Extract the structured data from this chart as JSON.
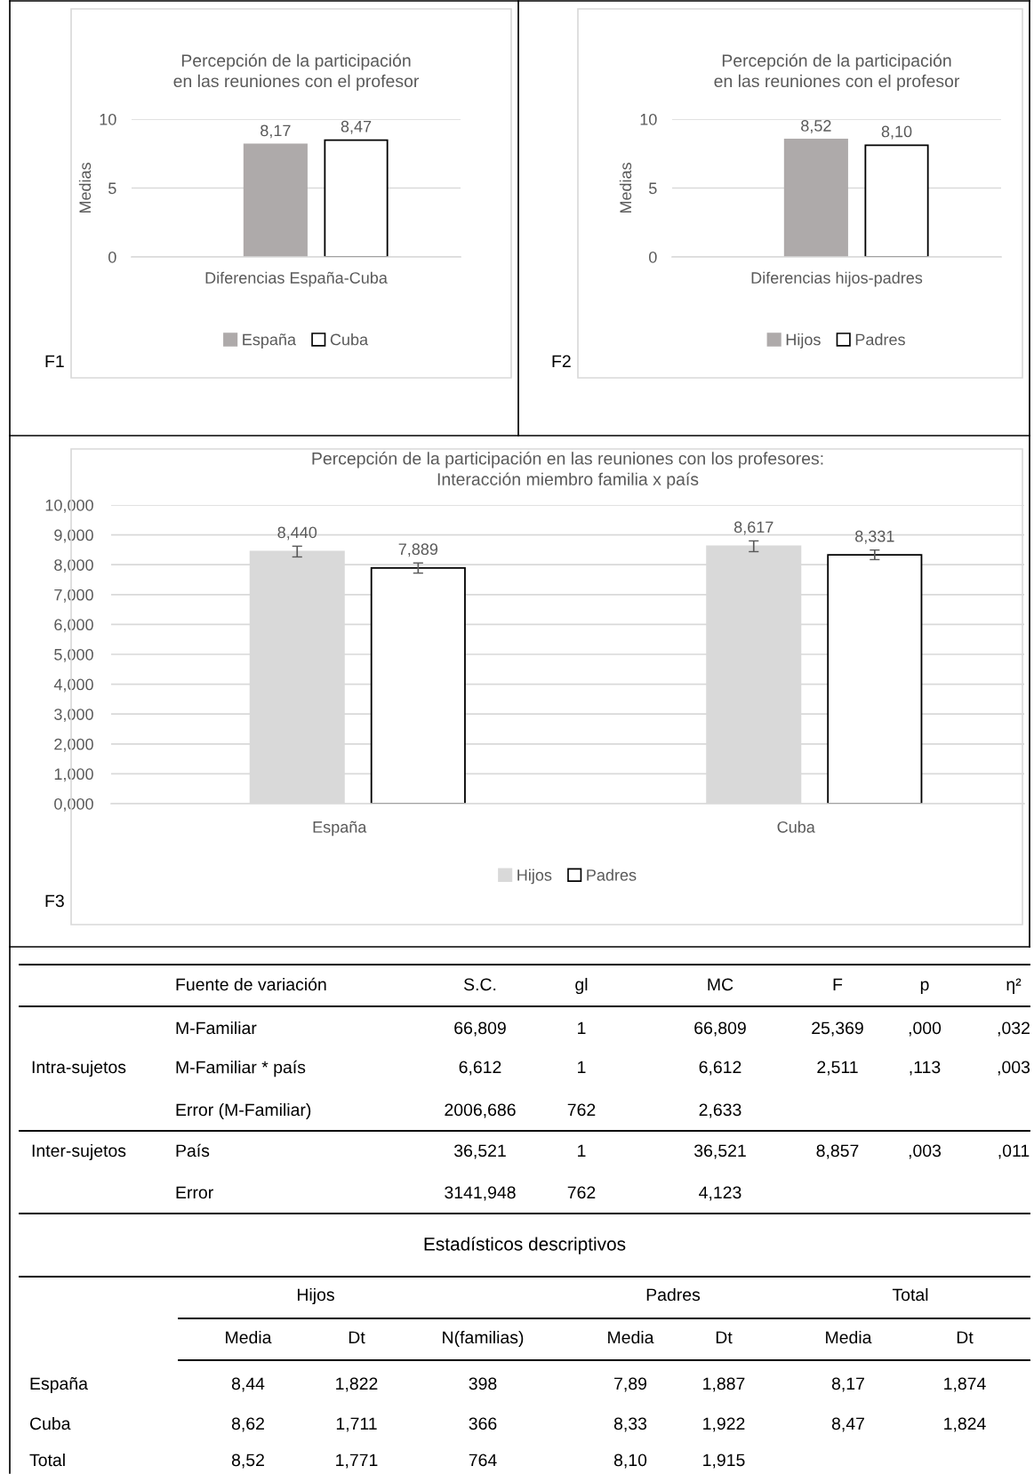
{
  "chart_data": [
    {
      "type": "bar",
      "title": "Percepción de la participación\nen las reuniones con el profesor",
      "ylabel": "Medias",
      "categories": [
        "Diferencias España-Cuba"
      ],
      "series": [
        {
          "name": "España",
          "color": "#aeaaaa",
          "values": [
            8.17
          ],
          "value_labels": [
            "8,17"
          ]
        },
        {
          "name": "Cuba",
          "color": "#ffffff",
          "values": [
            8.47
          ],
          "value_labels": [
            "8,47"
          ]
        }
      ],
      "ylim": [
        0,
        10
      ],
      "yticks": [
        0,
        5,
        10
      ],
      "grid": "y",
      "legend": "bottom",
      "annotations": [
        "F1"
      ]
    },
    {
      "type": "bar",
      "title": "Percepción de la participación\nen las reuniones con el profesor",
      "ylabel": "Medias",
      "categories": [
        "Diferencias hijos-padres"
      ],
      "series": [
        {
          "name": "Hijos",
          "color": "#aeaaaa",
          "values": [
            8.52
          ],
          "value_labels": [
            "8,52"
          ]
        },
        {
          "name": "Padres",
          "color": "#ffffff",
          "values": [
            8.1
          ],
          "value_labels": [
            "8,10"
          ]
        }
      ],
      "ylim": [
        0,
        10
      ],
      "yticks": [
        0,
        5,
        10
      ],
      "grid": "y",
      "legend": "bottom",
      "annotations": [
        "F2"
      ]
    },
    {
      "type": "bar",
      "title": "Percepción de la participación en las reuniones con los profesores:\nInteracción miembro familia x país",
      "categories": [
        "España",
        "Cuba"
      ],
      "series": [
        {
          "name": "Hijos",
          "color": "#d9d9d9",
          "values": [
            8.44,
            8.617
          ],
          "errors": [
            0.18,
            0.18
          ],
          "value_labels": [
            "8,440",
            "8,617"
          ]
        },
        {
          "name": "Padres",
          "color": "#ffffff",
          "values": [
            7.889,
            8.331
          ],
          "errors": [
            0.17,
            0.16
          ],
          "value_labels": [
            "7,889",
            "8,331"
          ]
        }
      ],
      "ylim": [
        0,
        10
      ],
      "yticks": [
        {
          "value": 0,
          "label": "0,000"
        },
        {
          "value": 1,
          "label": "1,000"
        },
        {
          "value": 2,
          "label": "2,000"
        },
        {
          "value": 3,
          "label": "3,000"
        },
        {
          "value": 4,
          "label": "4,000"
        },
        {
          "value": 5,
          "label": "5,000"
        },
        {
          "value": 6,
          "label": "6,000"
        },
        {
          "value": 7,
          "label": "7,000"
        },
        {
          "value": 8,
          "label": "8,000"
        },
        {
          "value": 9,
          "label": "9,000"
        },
        {
          "value": 10,
          "label": "10,000"
        }
      ],
      "grid": "y",
      "legend": "bottom",
      "annotations": [
        "F3"
      ]
    },
    {
      "type": "other",
      "cell_labels": [
        [
          null,
          "Fuente de variación",
          "S.C.",
          "gl",
          "MC",
          "F",
          "p",
          "η²"
        ],
        [
          null,
          "M-Familiar",
          "66,809",
          "1",
          "66,809",
          "25,369",
          ",000",
          ",032"
        ],
        [
          "Intra-sujetos",
          "M-Familiar * país",
          "6,612",
          "1",
          "6,612",
          "2,511",
          ",113",
          ",003"
        ],
        [
          null,
          "Error (M-Familiar)",
          "2006,686",
          "762",
          "2,633",
          null,
          null,
          null
        ],
        [
          "Inter-sujetos",
          "País",
          "36,521",
          "1",
          "36,521",
          "8,857",
          ",003",
          ",011"
        ],
        [
          null,
          "Error",
          "3141,948",
          "762",
          "4,123",
          null,
          null,
          null
        ]
      ]
    },
    {
      "type": "other",
      "title": "Estadísticos descriptivos",
      "cell_labels": [
        [
          null,
          "Hijos",
          null,
          null,
          "Padres",
          null,
          "Total",
          null
        ],
        [
          null,
          "Media",
          "Dt",
          "N(familias)",
          "Media",
          "Dt",
          "Media",
          "Dt"
        ],
        [
          "España",
          "8,44",
          "1,822",
          "398",
          "7,89",
          "1,887",
          "8,17",
          "1,874"
        ],
        [
          "Cuba",
          "8,62",
          "1,711",
          "366",
          "8,33",
          "1,922",
          "8,47",
          "1,824"
        ],
        [
          "Total",
          "8,52",
          "1,771",
          "764",
          "8,10",
          "1,915",
          null,
          null
        ]
      ]
    }
  ]
}
